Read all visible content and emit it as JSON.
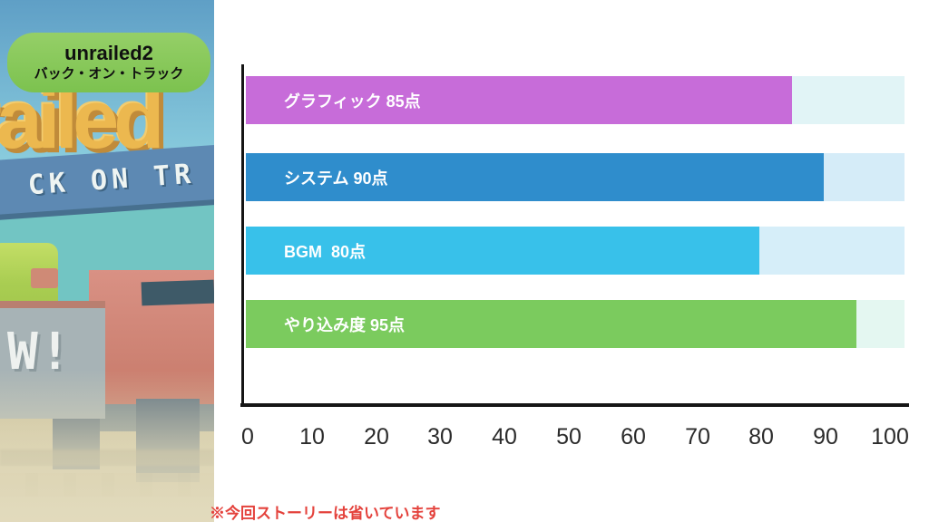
{
  "art": {
    "badge_title": "unrailed2",
    "badge_subtitle": "バック・オン・トラック",
    "logo_text": "railed",
    "banner_text": "CK ON TR",
    "wagon_text": "W!"
  },
  "chart_data": {
    "type": "bar",
    "orientation": "horizontal",
    "title": "",
    "categories": [
      "グラフィック",
      "システム",
      "BGM",
      "やり込み度"
    ],
    "values": [
      85,
      90,
      80,
      95
    ],
    "unit": "点",
    "bar_labels": [
      "グラフィック 85点",
      "システム 90点",
      "BGM  80点",
      "やり込み度 95点"
    ],
    "bar_colors": [
      "#c76cd9",
      "#2f8dcc",
      "#38c1ea",
      "#7bcb5e"
    ],
    "track_colors": [
      "#e1f4f6",
      "#d5ecf8",
      "#d6eef9",
      "#e4f7f1"
    ],
    "xlim": [
      0,
      100
    ],
    "ticks": [
      0,
      10,
      20,
      30,
      40,
      50,
      60,
      70,
      80,
      90,
      100
    ],
    "axis_color": "#151515",
    "grid": false,
    "legend": false
  },
  "footnote": {
    "text": "※今回ストーリーは省いています"
  }
}
